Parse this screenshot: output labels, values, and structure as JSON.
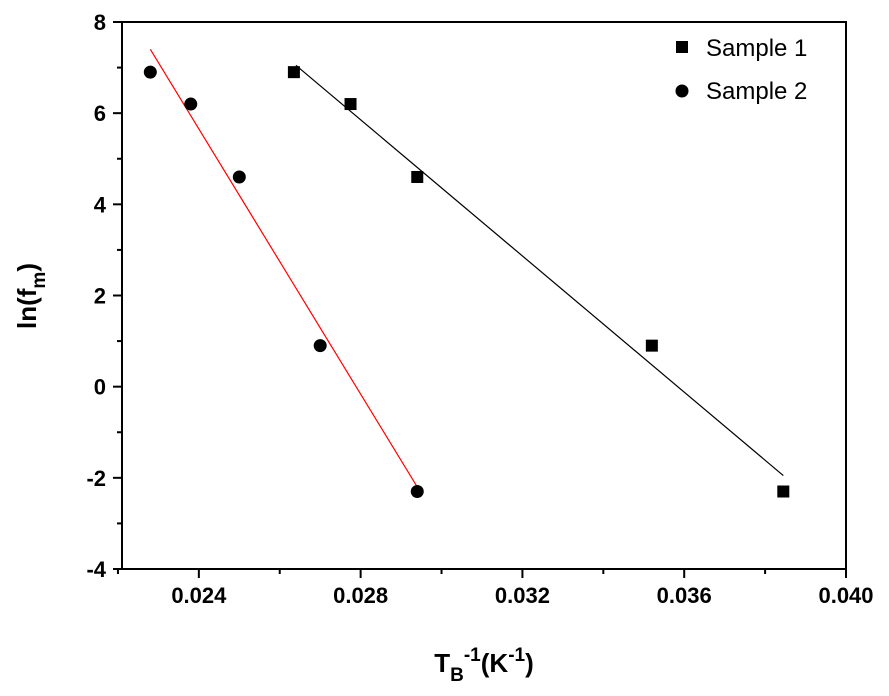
{
  "chart_data": {
    "type": "scatter",
    "xlabel": {
      "main": "T",
      "sub": "B",
      "sup": "-1",
      "paren": "(K",
      "paren_sup": "-1",
      "close": ")"
    },
    "ylabel": {
      "main": "ln(f",
      "sub": "m",
      "close": ")"
    },
    "xlim": [
      0.0221,
      0.04
    ],
    "ylim": [
      -4,
      8
    ],
    "x_ticks": [
      {
        "value": 0.024,
        "label": "0.024"
      },
      {
        "value": 0.028,
        "label": "0.028"
      },
      {
        "value": 0.032,
        "label": "0.032"
      },
      {
        "value": 0.036,
        "label": "0.036"
      },
      {
        "value": 0.04,
        "label": "0.040"
      }
    ],
    "x_minor_ticks": [
      0.022,
      0.026,
      0.03,
      0.034,
      0.038
    ],
    "y_ticks": [
      {
        "value": -4,
        "label": "-4"
      },
      {
        "value": -2,
        "label": "-2"
      },
      {
        "value": 0,
        "label": "0"
      },
      {
        "value": 2,
        "label": "2"
      },
      {
        "value": 4,
        "label": "4"
      },
      {
        "value": 6,
        "label": "6"
      },
      {
        "value": 8,
        "label": "8"
      }
    ],
    "y_minor_ticks": [
      -3,
      -1,
      1,
      3,
      5,
      7
    ],
    "grid": false,
    "legend_position": "top-right",
    "series": [
      {
        "name": "Sample 1",
        "marker": "square",
        "color": "#000000",
        "points": [
          {
            "x": 0.02635,
            "y": 6.9
          },
          {
            "x": 0.02775,
            "y": 6.2
          },
          {
            "x": 0.0294,
            "y": 4.6
          },
          {
            "x": 0.0352,
            "y": 0.9
          },
          {
            "x": 0.03845,
            "y": -2.3
          }
        ],
        "fit": {
          "color": "#000000",
          "x": [
            0.0264,
            0.03845
          ],
          "y": [
            7.05,
            -1.95
          ]
        }
      },
      {
        "name": "Sample 2",
        "marker": "circle",
        "color": "#000000",
        "points": [
          {
            "x": 0.0228,
            "y": 6.9
          },
          {
            "x": 0.0238,
            "y": 6.2
          },
          {
            "x": 0.025,
            "y": 4.6
          },
          {
            "x": 0.027,
            "y": 0.9
          },
          {
            "x": 0.0294,
            "y": -2.3
          }
        ],
        "fit": {
          "color": "#ff0000",
          "x": [
            0.0228,
            0.0294
          ],
          "y": [
            7.4,
            -2.2
          ]
        }
      }
    ]
  }
}
